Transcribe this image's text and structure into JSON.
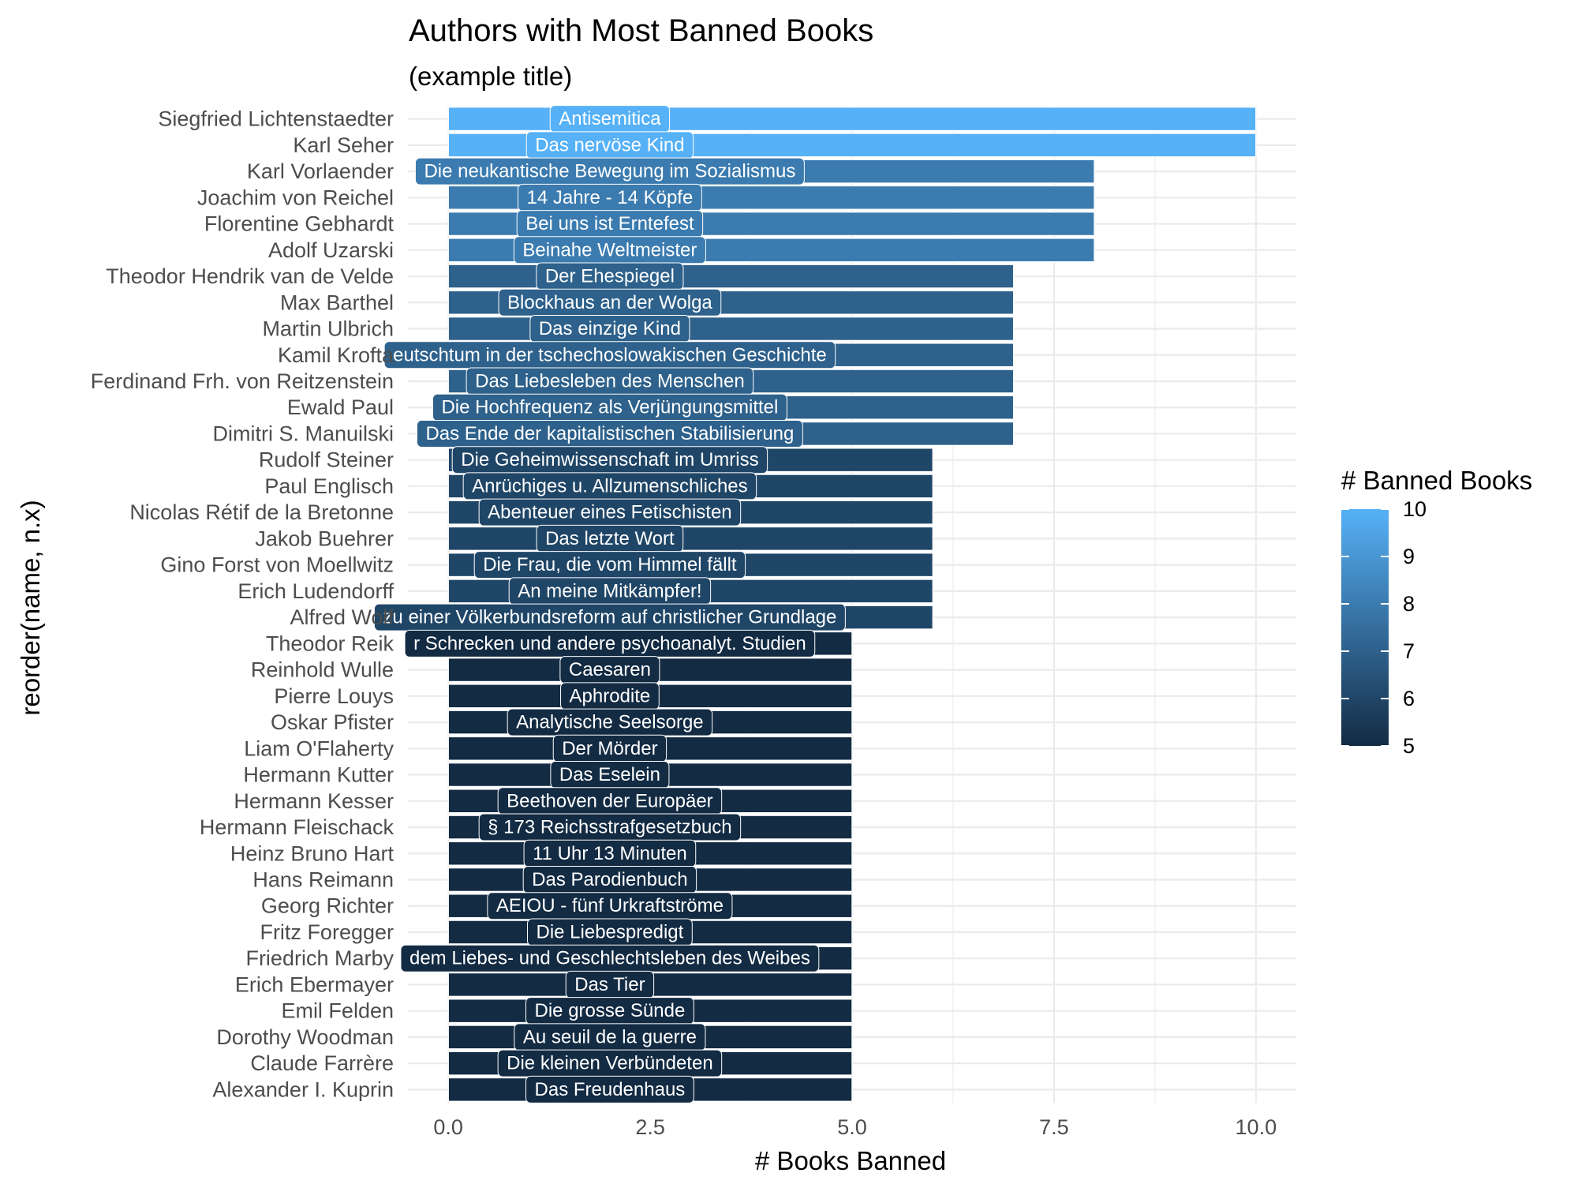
{
  "chart_data": {
    "type": "bar",
    "orientation": "horizontal",
    "title": "Authors with Most Banned Books",
    "subtitle": "(example title)",
    "xlabel": "# Books Banned",
    "ylabel": "reorder(name, n.x)",
    "xlim": [
      -0.5,
      10.5
    ],
    "x_ticks": [
      0.0,
      2.5,
      5.0,
      7.5,
      10.0
    ],
    "x_tick_labels": [
      "0.0",
      "2.5",
      "5.0",
      "7.5",
      "10.0"
    ],
    "grid": true,
    "legend": {
      "title": "# Banned Books",
      "position": "right",
      "type": "colorbar",
      "range": [
        5,
        10
      ],
      "ticks": [
        "10",
        "9",
        "8",
        "7",
        "6",
        "5"
      ],
      "low_color": "#132B43",
      "high_color": "#56B1F7"
    },
    "categories": [
      "Siegfried Lichtenstaedter",
      "Karl Seher",
      "Karl Vorlaender",
      "Joachim von Reichel",
      "Florentine Gebhardt",
      "Adolf Uzarski",
      "Theodor Hendrik van de Velde",
      "Max Barthel",
      "Martin Ulbrich",
      "Kamil Krofta",
      "Ferdinand Frh. von Reitzenstein",
      "Ewald Paul",
      "Dimitri S. Manuilski",
      "Rudolf Steiner",
      "Paul Englisch",
      "Nicolas Rétif de la Bretonne",
      "Jakob Buehrer",
      "Gino Forst von Moellwitz",
      "Erich Ludendorff",
      "Alfred Wolf",
      "Theodor Reik",
      "Reinhold Wulle",
      "Pierre Louys",
      "Oskar Pfister",
      "Liam O'Flaherty",
      "Hermann Kutter",
      "Hermann Kesser",
      "Hermann Fleischack",
      "Heinz Bruno Hart",
      "Hans Reimann",
      "Georg Richter",
      "Fritz Foregger",
      "Friedrich Marby",
      "Erich Ebermayer",
      "Emil Felden",
      "Dorothy Woodman",
      "Claude Farrère",
      "Alexander I. Kuprin"
    ],
    "values": [
      10,
      10,
      8,
      8,
      8,
      8,
      7,
      7,
      7,
      7,
      7,
      7,
      7,
      6,
      6,
      6,
      6,
      6,
      6,
      6,
      5,
      5,
      5,
      5,
      5,
      5,
      5,
      5,
      5,
      5,
      5,
      5,
      5,
      5,
      5,
      5,
      5,
      5
    ],
    "labels": [
      "Antisemitica",
      "Das nervöse Kind",
      "Die neukantische Bewegung im Sozialismus",
      "14 Jahre - 14 Köpfe",
      "Bei uns ist Erntefest",
      "Beinahe Weltmeister",
      "Der Ehespiegel",
      "Blockhaus an der Wolga",
      "Das einzige Kind",
      "eutschtum in der tschechoslowakischen Geschichte",
      "Das Liebesleben des Menschen",
      "Die Hochfrequenz als Verjüngungsmittel",
      "Das Ende der kapitalistischen Stabilisierung",
      "Die Geheimwissenschaft im Umriss",
      "Anrüchiges u. Allzumenschliches",
      "Abenteuer eines Fetischisten",
      "Das letzte Wort",
      "Die Frau, die vom Himmel fällt",
      "An meine Mitkämpfer!",
      "zu einer Völkerbundsreform auf christlicher Grundlage",
      "r Schrecken und andere psychoanalyt. Studien",
      "Caesaren",
      "Aphrodite",
      "Analytische Seelsorge",
      "Der Mörder",
      "Das Eselein",
      "Beethoven der Europäer",
      "§ 173 Reichsstrafgesetzbuch",
      "11 Uhr 13 Minuten",
      "Das Parodienbuch",
      "AEIOU - fünf Urkraftströme",
      "Die Liebespredigt",
      "dem Liebes- und Geschlechtsleben des Weibes",
      "Das Tier",
      "Die grosse Sünde",
      "Au seuil de la guerre",
      "Die kleinen Verbündeten",
      "Das Freudenhaus"
    ]
  }
}
